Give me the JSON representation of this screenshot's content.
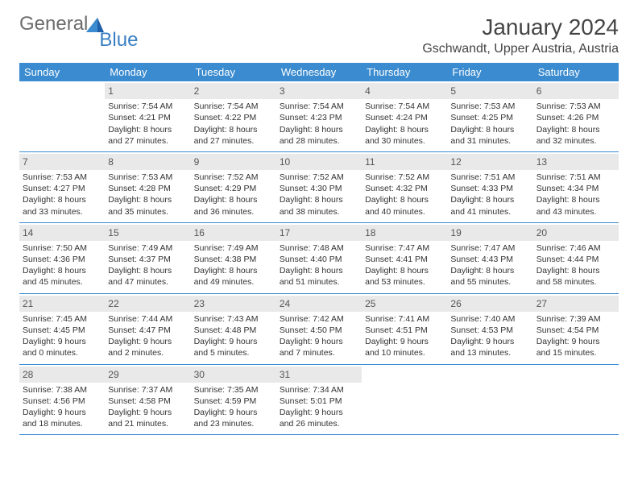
{
  "logo": {
    "word1": "General",
    "word2": "Blue"
  },
  "header": {
    "title": "January 2024",
    "location": "Gschwandt, Upper Austria, Austria"
  },
  "colors": {
    "header_bg": "#3a8bcf",
    "header_text": "#ffffff",
    "daynum_bg": "#e9e9e9",
    "border": "#3a8bcf",
    "logo_gray": "#6c6c6c",
    "logo_blue": "#3a7fc4"
  },
  "weekdays": [
    "Sunday",
    "Monday",
    "Tuesday",
    "Wednesday",
    "Thursday",
    "Friday",
    "Saturday"
  ],
  "weeks": [
    [
      null,
      {
        "n": "1",
        "sr": "Sunrise: 7:54 AM",
        "ss": "Sunset: 4:21 PM",
        "d1": "Daylight: 8 hours",
        "d2": "and 27 minutes."
      },
      {
        "n": "2",
        "sr": "Sunrise: 7:54 AM",
        "ss": "Sunset: 4:22 PM",
        "d1": "Daylight: 8 hours",
        "d2": "and 27 minutes."
      },
      {
        "n": "3",
        "sr": "Sunrise: 7:54 AM",
        "ss": "Sunset: 4:23 PM",
        "d1": "Daylight: 8 hours",
        "d2": "and 28 minutes."
      },
      {
        "n": "4",
        "sr": "Sunrise: 7:54 AM",
        "ss": "Sunset: 4:24 PM",
        "d1": "Daylight: 8 hours",
        "d2": "and 30 minutes."
      },
      {
        "n": "5",
        "sr": "Sunrise: 7:53 AM",
        "ss": "Sunset: 4:25 PM",
        "d1": "Daylight: 8 hours",
        "d2": "and 31 minutes."
      },
      {
        "n": "6",
        "sr": "Sunrise: 7:53 AM",
        "ss": "Sunset: 4:26 PM",
        "d1": "Daylight: 8 hours",
        "d2": "and 32 minutes."
      }
    ],
    [
      {
        "n": "7",
        "sr": "Sunrise: 7:53 AM",
        "ss": "Sunset: 4:27 PM",
        "d1": "Daylight: 8 hours",
        "d2": "and 33 minutes."
      },
      {
        "n": "8",
        "sr": "Sunrise: 7:53 AM",
        "ss": "Sunset: 4:28 PM",
        "d1": "Daylight: 8 hours",
        "d2": "and 35 minutes."
      },
      {
        "n": "9",
        "sr": "Sunrise: 7:52 AM",
        "ss": "Sunset: 4:29 PM",
        "d1": "Daylight: 8 hours",
        "d2": "and 36 minutes."
      },
      {
        "n": "10",
        "sr": "Sunrise: 7:52 AM",
        "ss": "Sunset: 4:30 PM",
        "d1": "Daylight: 8 hours",
        "d2": "and 38 minutes."
      },
      {
        "n": "11",
        "sr": "Sunrise: 7:52 AM",
        "ss": "Sunset: 4:32 PM",
        "d1": "Daylight: 8 hours",
        "d2": "and 40 minutes."
      },
      {
        "n": "12",
        "sr": "Sunrise: 7:51 AM",
        "ss": "Sunset: 4:33 PM",
        "d1": "Daylight: 8 hours",
        "d2": "and 41 minutes."
      },
      {
        "n": "13",
        "sr": "Sunrise: 7:51 AM",
        "ss": "Sunset: 4:34 PM",
        "d1": "Daylight: 8 hours",
        "d2": "and 43 minutes."
      }
    ],
    [
      {
        "n": "14",
        "sr": "Sunrise: 7:50 AM",
        "ss": "Sunset: 4:36 PM",
        "d1": "Daylight: 8 hours",
        "d2": "and 45 minutes."
      },
      {
        "n": "15",
        "sr": "Sunrise: 7:49 AM",
        "ss": "Sunset: 4:37 PM",
        "d1": "Daylight: 8 hours",
        "d2": "and 47 minutes."
      },
      {
        "n": "16",
        "sr": "Sunrise: 7:49 AM",
        "ss": "Sunset: 4:38 PM",
        "d1": "Daylight: 8 hours",
        "d2": "and 49 minutes."
      },
      {
        "n": "17",
        "sr": "Sunrise: 7:48 AM",
        "ss": "Sunset: 4:40 PM",
        "d1": "Daylight: 8 hours",
        "d2": "and 51 minutes."
      },
      {
        "n": "18",
        "sr": "Sunrise: 7:47 AM",
        "ss": "Sunset: 4:41 PM",
        "d1": "Daylight: 8 hours",
        "d2": "and 53 minutes."
      },
      {
        "n": "19",
        "sr": "Sunrise: 7:47 AM",
        "ss": "Sunset: 4:43 PM",
        "d1": "Daylight: 8 hours",
        "d2": "and 55 minutes."
      },
      {
        "n": "20",
        "sr": "Sunrise: 7:46 AM",
        "ss": "Sunset: 4:44 PM",
        "d1": "Daylight: 8 hours",
        "d2": "and 58 minutes."
      }
    ],
    [
      {
        "n": "21",
        "sr": "Sunrise: 7:45 AM",
        "ss": "Sunset: 4:45 PM",
        "d1": "Daylight: 9 hours",
        "d2": "and 0 minutes."
      },
      {
        "n": "22",
        "sr": "Sunrise: 7:44 AM",
        "ss": "Sunset: 4:47 PM",
        "d1": "Daylight: 9 hours",
        "d2": "and 2 minutes."
      },
      {
        "n": "23",
        "sr": "Sunrise: 7:43 AM",
        "ss": "Sunset: 4:48 PM",
        "d1": "Daylight: 9 hours",
        "d2": "and 5 minutes."
      },
      {
        "n": "24",
        "sr": "Sunrise: 7:42 AM",
        "ss": "Sunset: 4:50 PM",
        "d1": "Daylight: 9 hours",
        "d2": "and 7 minutes."
      },
      {
        "n": "25",
        "sr": "Sunrise: 7:41 AM",
        "ss": "Sunset: 4:51 PM",
        "d1": "Daylight: 9 hours",
        "d2": "and 10 minutes."
      },
      {
        "n": "26",
        "sr": "Sunrise: 7:40 AM",
        "ss": "Sunset: 4:53 PM",
        "d1": "Daylight: 9 hours",
        "d2": "and 13 minutes."
      },
      {
        "n": "27",
        "sr": "Sunrise: 7:39 AM",
        "ss": "Sunset: 4:54 PM",
        "d1": "Daylight: 9 hours",
        "d2": "and 15 minutes."
      }
    ],
    [
      {
        "n": "28",
        "sr": "Sunrise: 7:38 AM",
        "ss": "Sunset: 4:56 PM",
        "d1": "Daylight: 9 hours",
        "d2": "and 18 minutes."
      },
      {
        "n": "29",
        "sr": "Sunrise: 7:37 AM",
        "ss": "Sunset: 4:58 PM",
        "d1": "Daylight: 9 hours",
        "d2": "and 21 minutes."
      },
      {
        "n": "30",
        "sr": "Sunrise: 7:35 AM",
        "ss": "Sunset: 4:59 PM",
        "d1": "Daylight: 9 hours",
        "d2": "and 23 minutes."
      },
      {
        "n": "31",
        "sr": "Sunrise: 7:34 AM",
        "ss": "Sunset: 5:01 PM",
        "d1": "Daylight: 9 hours",
        "d2": "and 26 minutes."
      },
      null,
      null,
      null
    ]
  ]
}
